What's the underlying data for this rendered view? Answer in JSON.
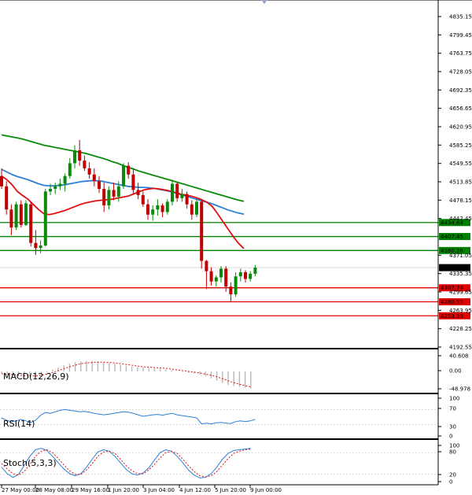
{
  "chart_data": {
    "type": "candlestick",
    "price_axis_ticks": [
      "4835.15",
      "4799.45",
      "4763.75",
      "4728.05",
      "4692.35",
      "4656.65",
      "4620.95",
      "4585.25",
      "4549.55",
      "4513.85",
      "4478.15",
      "4442.45",
      "4371.05",
      "4335.35",
      "4299.65",
      "4263.95",
      "4228.25",
      "4192.55"
    ],
    "time_axis_ticks": [
      "27 May 00:00",
      "28 May 08:00",
      "29 May 16:00",
      "1 Jun 20:00",
      "3 Jun 04:00",
      "4 Jun 12:00",
      "5 Jun 20:00",
      "9 Jun 00:00"
    ],
    "current_price": {
      "value": 4346.95,
      "label": "4346.95"
    },
    "price_range": [
      4192.55,
      4850
    ],
    "levels": [
      {
        "label": "4434.64",
        "value": 4434.64,
        "color": "#008000"
      },
      {
        "label": "4407.45",
        "value": 4407.45,
        "color": "#008000"
      },
      {
        "label": "4380.26",
        "value": 4380.26,
        "color": "#008000"
      },
      {
        "label": "4307.74",
        "value": 4307.74,
        "color": "#e00000"
      },
      {
        "label": "4280.55",
        "value": 4280.55,
        "color": "#e00000"
      },
      {
        "label": "4253.36",
        "value": 4253.36,
        "color": "#e00000"
      }
    ],
    "candles": [
      [
        4525,
        4540,
        4500,
        4505
      ],
      [
        4505,
        4515,
        4450,
        4460
      ],
      [
        4460,
        4470,
        4410,
        4425
      ],
      [
        4425,
        4475,
        4420,
        4470
      ],
      [
        4470,
        4478,
        4425,
        4430
      ],
      [
        4430,
        4478,
        4428,
        4472
      ],
      [
        4470,
        4475,
        4388,
        4395
      ],
      [
        4395,
        4420,
        4372,
        4385
      ],
      [
        4385,
        4400,
        4375,
        4390
      ],
      [
        4390,
        4500,
        4388,
        4495
      ],
      [
        4495,
        4510,
        4488,
        4500
      ],
      [
        4500,
        4512,
        4490,
        4505
      ],
      [
        4505,
        4520,
        4498,
        4510
      ],
      [
        4510,
        4530,
        4495,
        4525
      ],
      [
        4525,
        4560,
        4520,
        4550
      ],
      [
        4550,
        4585,
        4540,
        4575
      ],
      [
        4575,
        4595,
        4545,
        4555
      ],
      [
        4555,
        4565,
        4535,
        4540
      ],
      [
        4540,
        4552,
        4520,
        4528
      ],
      [
        4528,
        4540,
        4505,
        4515
      ],
      [
        4515,
        4525,
        4492,
        4500
      ],
      [
        4500,
        4512,
        4455,
        4468
      ],
      [
        4468,
        4505,
        4460,
        4498
      ],
      [
        4498,
        4512,
        4478,
        4485
      ],
      [
        4485,
        4515,
        4475,
        4505
      ],
      [
        4505,
        4550,
        4500,
        4545
      ],
      [
        4545,
        4552,
        4520,
        4528
      ],
      [
        4528,
        4540,
        4490,
        4498
      ],
      [
        4498,
        4512,
        4480,
        4488
      ],
      [
        4488,
        4495,
        4465,
        4470
      ],
      [
        4470,
        4480,
        4440,
        4450
      ],
      [
        4450,
        4468,
        4438,
        4460
      ],
      [
        4460,
        4480,
        4448,
        4468
      ],
      [
        4468,
        4472,
        4445,
        4455
      ],
      [
        4455,
        4480,
        4450,
        4475
      ],
      [
        4475,
        4518,
        4468,
        4510
      ],
      [
        4510,
        4512,
        4475,
        4482
      ],
      [
        4482,
        4500,
        4475,
        4490
      ],
      [
        4490,
        4495,
        4462,
        4470
      ],
      [
        4470,
        4478,
        4440,
        4450
      ],
      [
        4450,
        4480,
        4445,
        4475
      ],
      [
        4475,
        4480,
        4345,
        4360
      ],
      [
        4360,
        4362,
        4305,
        4340
      ],
      [
        4340,
        4348,
        4312,
        4320
      ],
      [
        4320,
        4332,
        4310,
        4328
      ],
      [
        4328,
        4350,
        4318,
        4345
      ],
      [
        4345,
        4350,
        4300,
        4310
      ],
      [
        4310,
        4318,
        4280,
        4295
      ],
      [
        4295,
        4338,
        4290,
        4330
      ],
      [
        4330,
        4345,
        4320,
        4338
      ],
      [
        4338,
        4342,
        4318,
        4325
      ],
      [
        4325,
        4340,
        4320,
        4335
      ],
      [
        4335,
        4352,
        4330,
        4347
      ]
    ],
    "ma_fast": [
      4525,
      4518,
      4508,
      4495,
      4487,
      4480,
      4470,
      4460,
      4452,
      4450,
      4452,
      4455,
      4458,
      4462,
      4466,
      4470,
      4473,
      4475,
      4477,
      4478,
      4479,
      4480,
      4482,
      4484,
      4486,
      4490,
      4494,
      4498,
      4500,
      4501,
      4500,
      4498,
      4496,
      4493,
      4490,
      4488,
      4486,
      4483,
      4479,
      4474,
      4466,
      4452,
      4437,
      4422,
      4407,
      4394,
      4384
    ],
    "ma_mid": [
      4538,
      4533,
      4528,
      4524,
      4521,
      4518,
      4514,
      4510,
      4507,
      4506,
      4506,
      4507,
      4508,
      4510,
      4512,
      4514,
      4515,
      4516,
      4516,
      4515,
      4513,
      4511,
      4509,
      4507,
      4505,
      4504,
      4503,
      4503,
      4502,
      4501,
      4499,
      4497,
      4495,
      4492,
      4489,
      4486,
      4483,
      4480,
      4477,
      4474,
      4471,
      4467,
      4463,
      4459,
      4456,
      4453,
      4451
    ],
    "ma_slow": [
      4605,
      4603,
      4601,
      4599,
      4597,
      4594,
      4591,
      4588,
      4585,
      4583,
      4581,
      4579,
      4577,
      4575,
      4573,
      4571,
      4569,
      4566,
      4563,
      4560,
      4557,
      4553,
      4550,
      4546,
      4542,
      4539,
      4535,
      4532,
      4529,
      4526,
      4523,
      4520,
      4517,
      4514,
      4511,
      4508,
      4505,
      4502,
      4499,
      4496,
      4493,
      4490,
      4487,
      4484,
      4481,
      4478,
      4476
    ],
    "macd": {
      "label": "MACD(12,26,9)",
      "ticks": [
        "40.608",
        "0.00",
        "-48.978"
      ],
      "range": [
        -48.978,
        40.608
      ],
      "histogram": [
        -5,
        -8,
        -10,
        -12,
        -14,
        -13,
        -12,
        -8,
        -2,
        4,
        10,
        16,
        20,
        24,
        26,
        27,
        27,
        26,
        24,
        22,
        20,
        17,
        14,
        12,
        11,
        10,
        9,
        8,
        7,
        5,
        3,
        1,
        -1,
        -3,
        -5,
        -8,
        -12,
        -18,
        -24,
        -30,
        -35,
        -38,
        -40,
        -42,
        -44
      ],
      "signal": [
        -6,
        -7,
        -8,
        -10,
        -11,
        -12,
        -12,
        -10,
        -7,
        -3,
        2,
        7,
        12,
        16,
        20,
        22,
        23,
        24,
        24,
        23,
        22,
        20,
        18,
        16,
        14,
        12,
        11,
        10,
        9,
        8,
        6,
        4,
        2,
        0,
        -2,
        -4,
        -7,
        -10,
        -14,
        -19,
        -24,
        -29,
        -33,
        -37,
        -40
      ]
    },
    "rsi": {
      "label": "RSI(14)",
      "ticks": [
        "100",
        "70",
        "30",
        "0"
      ],
      "range": [
        0,
        100
      ],
      "values": [
        48,
        42,
        38,
        40,
        44,
        40,
        36,
        42,
        55,
        62,
        60,
        64,
        68,
        70,
        68,
        66,
        64,
        65,
        63,
        60,
        58,
        56,
        58,
        60,
        62,
        64,
        63,
        60,
        56,
        52,
        54,
        56,
        57,
        55,
        58,
        60,
        56,
        54,
        52,
        50,
        48,
        32,
        34,
        32,
        35,
        36,
        34,
        33,
        38,
        40,
        38,
        40,
        44
      ]
    },
    "stoch": {
      "label": "Stoch(5,3,3)",
      "ticks": [
        "100",
        "80",
        "20",
        "0"
      ],
      "range": [
        0,
        100
      ],
      "k": [
        40,
        22,
        12,
        20,
        45,
        70,
        88,
        92,
        86,
        70,
        52,
        35,
        22,
        16,
        22,
        40,
        62,
        82,
        88,
        84,
        70,
        52,
        34,
        22,
        18,
        24,
        38,
        60,
        80,
        88,
        84,
        70,
        52,
        32,
        18,
        10,
        12,
        22,
        40,
        62,
        78,
        86,
        88,
        90,
        92
      ],
      "d": [
        50,
        35,
        22,
        18,
        28,
        48,
        70,
        84,
        88,
        80,
        64,
        46,
        30,
        20,
        20,
        32,
        50,
        70,
        82,
        84,
        78,
        62,
        44,
        30,
        22,
        22,
        32,
        48,
        66,
        80,
        84,
        78,
        62,
        44,
        28,
        16,
        13,
        16,
        28,
        46,
        64,
        78,
        84,
        88,
        90
      ]
    }
  }
}
